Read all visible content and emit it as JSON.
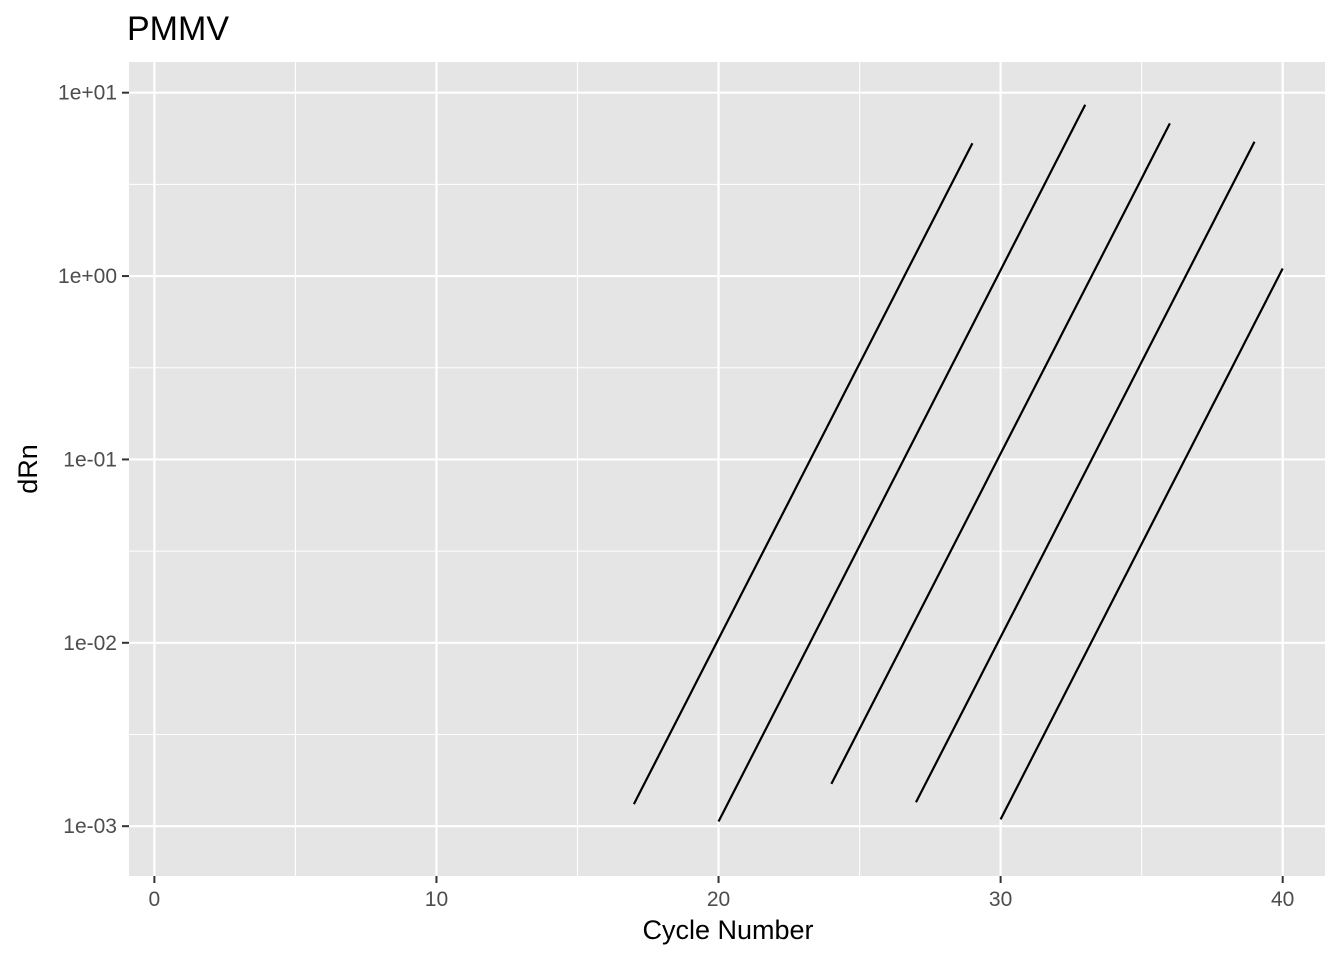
{
  "chart_data": {
    "type": "line",
    "title": "PMMV",
    "xlabel": "Cycle Number",
    "ylabel": "dRn",
    "xlim": [
      -0.9,
      41.5
    ],
    "ylim": [
      0.000535,
      14.7
    ],
    "y_scale": "log10",
    "x_ticks": [
      0,
      10,
      20,
      30,
      40
    ],
    "x_tick_labels": [
      "0",
      "10",
      "20",
      "30",
      "40"
    ],
    "y_ticks": [
      0.001,
      0.01,
      0.1,
      1,
      10
    ],
    "y_tick_labels": [
      "1e-03",
      "1e-02",
      "1e-01",
      "1e+00",
      "1e+01"
    ],
    "x_minor_gridlines": [
      5,
      15,
      25,
      35
    ],
    "grid": true,
    "background": "#e5e5e5",
    "grid_color": "#ffffff",
    "line_color": "#000000",
    "series": [
      {
        "x": [
          17,
          29
        ],
        "y": [
          0.00132,
          5.3
        ]
      },
      {
        "x": [
          20,
          33
        ],
        "y": [
          0.00106,
          8.6
        ]
      },
      {
        "x": [
          24,
          36
        ],
        "y": [
          0.0017,
          6.8
        ]
      },
      {
        "x": [
          27,
          39
        ],
        "y": [
          0.00135,
          5.4
        ]
      },
      {
        "x": [
          30,
          40
        ],
        "y": [
          0.00109,
          1.1
        ]
      }
    ]
  }
}
